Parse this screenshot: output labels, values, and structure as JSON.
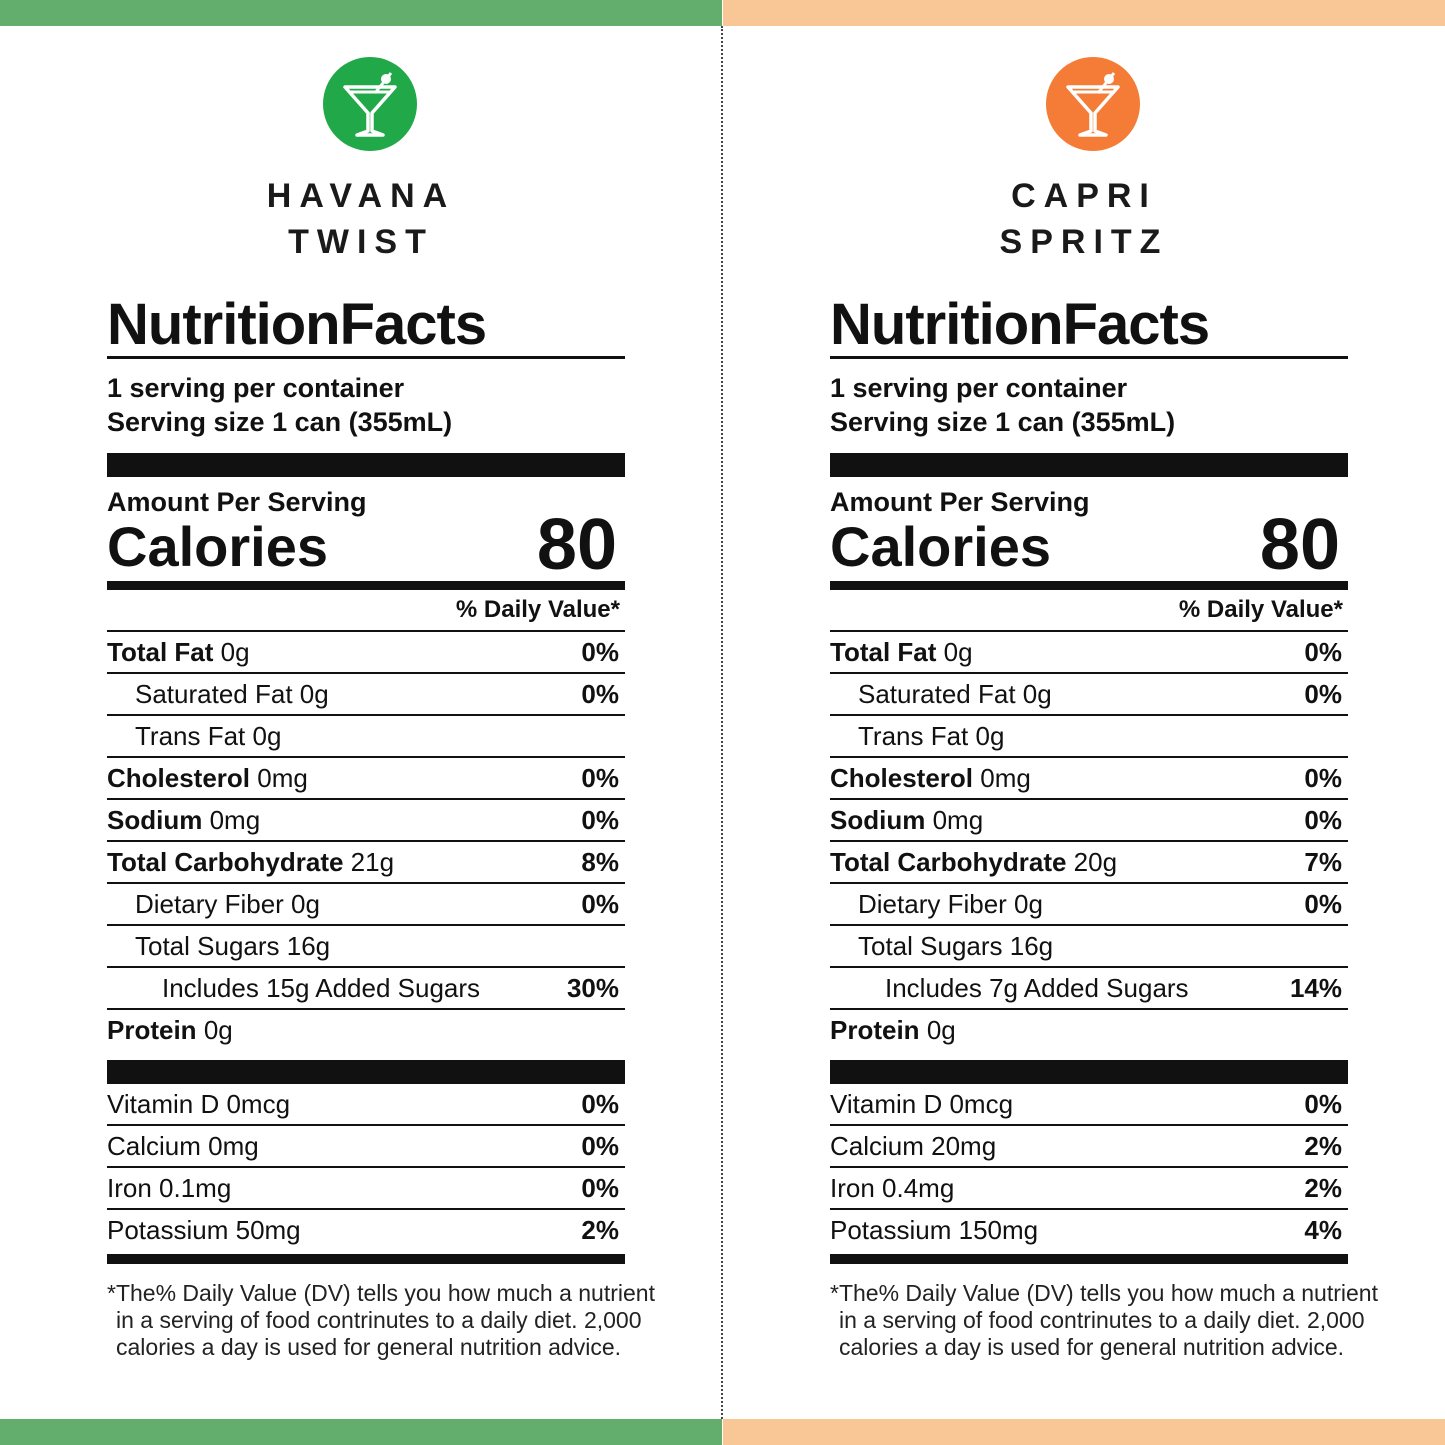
{
  "colors": {
    "left_accent": "#63ad6d",
    "right_accent": "#f9c795",
    "left_logo": "#20a849",
    "right_logo": "#f47c36"
  },
  "icon": "martini-glass-icon",
  "panels": [
    {
      "brand_line1": "HAVANA",
      "brand_line2": "TWIST",
      "title": "NutritionFacts",
      "servings_per_container": "1 serving per container",
      "serving_size": "Serving size 1 can (355mL)",
      "amount_per_serving": "Amount Per Serving",
      "calories_label": "Calories",
      "calories": "80",
      "dv_header": "% Daily Value*",
      "nutrients": [
        {
          "name": "Total Fat",
          "amount": "0g",
          "dv": "0%"
        },
        {
          "name": "Saturated Fat 0g",
          "dv": "0%"
        },
        {
          "name": "Trans Fat 0g",
          "dv": ""
        },
        {
          "name": "Cholesterol",
          "amount": "0mg",
          "dv": "0%"
        },
        {
          "name": "Sodium",
          "amount": "0mg",
          "dv": "0%"
        },
        {
          "name": "Total Carbohydrate",
          "amount": "21g",
          "dv": "8%"
        },
        {
          "name": "Dietary Fiber 0g",
          "dv": "0%"
        },
        {
          "name": "Total Sugars 16g",
          "dv": ""
        },
        {
          "name": "Includes 15g Added Sugars",
          "dv": "30%"
        },
        {
          "name": "Protein",
          "amount": "0g",
          "dv": ""
        }
      ],
      "vitamins": [
        {
          "name": "Vitamin D 0mcg",
          "dv": "0%"
        },
        {
          "name": "Calcium 0mg",
          "dv": "0%"
        },
        {
          "name": "Iron 0.1mg",
          "dv": "0%"
        },
        {
          "name": "Potassium 50mg",
          "dv": "2%"
        }
      ],
      "footnote": [
        "*The% Daily Value (DV) tells you how much a nutrient",
        "in a serving of food contrinutes to a daily diet. 2,000",
        "calories a day is used for general nutrition advice."
      ]
    },
    {
      "brand_line1": "CAPRI",
      "brand_line2": "SPRITZ",
      "title": "NutritionFacts",
      "servings_per_container": "1 serving per container",
      "serving_size": "Serving size 1 can (355mL)",
      "amount_per_serving": "Amount Per Serving",
      "calories_label": "Calories",
      "calories": "80",
      "dv_header": "% Daily Value*",
      "nutrients": [
        {
          "name": "Total Fat",
          "amount": "0g",
          "dv": "0%"
        },
        {
          "name": "Saturated Fat 0g",
          "dv": "0%"
        },
        {
          "name": "Trans Fat 0g",
          "dv": ""
        },
        {
          "name": "Cholesterol",
          "amount": "0mg",
          "dv": "0%"
        },
        {
          "name": "Sodium",
          "amount": "0mg",
          "dv": "0%"
        },
        {
          "name": "Total Carbohydrate",
          "amount": "20g",
          "dv": "7%"
        },
        {
          "name": "Dietary Fiber 0g",
          "dv": "0%"
        },
        {
          "name": "Total Sugars 16g",
          "dv": ""
        },
        {
          "name": "Includes 7g Added Sugars",
          "dv": "14%"
        },
        {
          "name": "Protein",
          "amount": "0g",
          "dv": ""
        }
      ],
      "vitamins": [
        {
          "name": "Vitamin D 0mcg",
          "dv": "0%"
        },
        {
          "name": "Calcium 20mg",
          "dv": "2%"
        },
        {
          "name": "Iron 0.4mg",
          "dv": "2%"
        },
        {
          "name": "Potassium 150mg",
          "dv": "4%"
        }
      ],
      "footnote": [
        "*The% Daily Value (DV) tells you how much a nutrient",
        "in a serving of food contrinutes to a daily diet. 2,000",
        "calories a day is used for general nutrition advice."
      ]
    }
  ]
}
